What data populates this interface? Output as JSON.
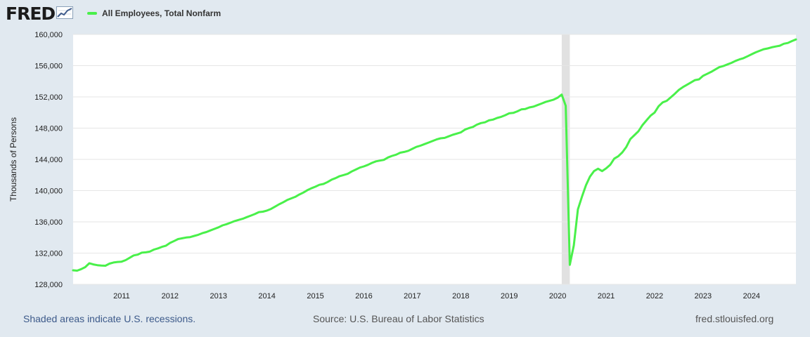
{
  "header": {
    "logo_text": "FRED",
    "series_label": "All Employees, Total Nonfarm"
  },
  "colors": {
    "line": "#49f04a",
    "recession": "#e1e1e1",
    "background": "#e1e9f0",
    "plot_bg": "#ffffff"
  },
  "footer": {
    "recession_note": "Shaded areas indicate U.S. recessions.",
    "source": "Source: U.S. Bureau of Labor Statistics",
    "site": "fred.stlouisfed.org"
  },
  "chart_data": {
    "type": "line",
    "title": "",
    "xlabel": "",
    "ylabel": "Thousands of Persons",
    "ylim": [
      128000,
      160000
    ],
    "xlim": [
      "2010-01",
      "2024-12"
    ],
    "yticks": [
      128000,
      132000,
      136000,
      140000,
      144000,
      148000,
      152000,
      156000,
      160000
    ],
    "ytick_labels": [
      "128,000",
      "132,000",
      "136,000",
      "140,000",
      "144,000",
      "148,000",
      "152,000",
      "156,000",
      "160,000"
    ],
    "xtick_labels": [
      "2011",
      "2012",
      "2013",
      "2014",
      "2015",
      "2016",
      "2017",
      "2018",
      "2019",
      "2020",
      "2021",
      "2022",
      "2023",
      "2024"
    ],
    "grid": true,
    "recessions": [
      {
        "start": "2020-02",
        "end": "2020-04"
      }
    ],
    "series": [
      {
        "name": "All Employees, Total Nonfarm",
        "x": [
          "2010-01",
          "2010-02",
          "2010-03",
          "2010-04",
          "2010-05",
          "2010-06",
          "2010-07",
          "2010-08",
          "2010-09",
          "2010-10",
          "2010-11",
          "2010-12",
          "2011-01",
          "2011-02",
          "2011-03",
          "2011-04",
          "2011-05",
          "2011-06",
          "2011-07",
          "2011-08",
          "2011-09",
          "2011-10",
          "2011-11",
          "2011-12",
          "2012-01",
          "2012-02",
          "2012-03",
          "2012-04",
          "2012-05",
          "2012-06",
          "2012-07",
          "2012-08",
          "2012-09",
          "2012-10",
          "2012-11",
          "2012-12",
          "2013-01",
          "2013-02",
          "2013-03",
          "2013-04",
          "2013-05",
          "2013-06",
          "2013-07",
          "2013-08",
          "2013-09",
          "2013-10",
          "2013-11",
          "2013-12",
          "2014-01",
          "2014-02",
          "2014-03",
          "2014-04",
          "2014-05",
          "2014-06",
          "2014-07",
          "2014-08",
          "2014-09",
          "2014-10",
          "2014-11",
          "2014-12",
          "2015-01",
          "2015-02",
          "2015-03",
          "2015-04",
          "2015-05",
          "2015-06",
          "2015-07",
          "2015-08",
          "2015-09",
          "2015-10",
          "2015-11",
          "2015-12",
          "2016-01",
          "2016-02",
          "2016-03",
          "2016-04",
          "2016-05",
          "2016-06",
          "2016-07",
          "2016-08",
          "2016-09",
          "2016-10",
          "2016-11",
          "2016-12",
          "2017-01",
          "2017-02",
          "2017-03",
          "2017-04",
          "2017-05",
          "2017-06",
          "2017-07",
          "2017-08",
          "2017-09",
          "2017-10",
          "2017-11",
          "2017-12",
          "2018-01",
          "2018-02",
          "2018-03",
          "2018-04",
          "2018-05",
          "2018-06",
          "2018-07",
          "2018-08",
          "2018-09",
          "2018-10",
          "2018-11",
          "2018-12",
          "2019-01",
          "2019-02",
          "2019-03",
          "2019-04",
          "2019-05",
          "2019-06",
          "2019-07",
          "2019-08",
          "2019-09",
          "2019-10",
          "2019-11",
          "2019-12",
          "2020-01",
          "2020-02",
          "2020-03",
          "2020-04",
          "2020-05",
          "2020-06",
          "2020-07",
          "2020-08",
          "2020-09",
          "2020-10",
          "2020-11",
          "2020-12",
          "2021-01",
          "2021-02",
          "2021-03",
          "2021-04",
          "2021-05",
          "2021-06",
          "2021-07",
          "2021-08",
          "2021-09",
          "2021-10",
          "2021-11",
          "2021-12",
          "2022-01",
          "2022-02",
          "2022-03",
          "2022-04",
          "2022-05",
          "2022-06",
          "2022-07",
          "2022-08",
          "2022-09",
          "2022-10",
          "2022-11",
          "2022-12",
          "2023-01",
          "2023-02",
          "2023-03",
          "2023-04",
          "2023-05",
          "2023-06",
          "2023-07",
          "2023-08",
          "2023-09",
          "2023-10",
          "2023-11",
          "2023-12",
          "2024-01",
          "2024-02",
          "2024-03",
          "2024-04",
          "2024-05",
          "2024-06",
          "2024-07",
          "2024-08",
          "2024-09",
          "2024-10",
          "2024-11",
          "2024-12"
        ],
        "values": [
          129800,
          129750,
          129950,
          130200,
          130700,
          130550,
          130450,
          130400,
          130380,
          130650,
          130800,
          130870,
          130900,
          131100,
          131400,
          131700,
          131800,
          132050,
          132100,
          132200,
          132450,
          132600,
          132800,
          132950,
          133300,
          133550,
          133800,
          133900,
          134000,
          134050,
          134200,
          134350,
          134550,
          134700,
          134900,
          135100,
          135300,
          135550,
          135700,
          135900,
          136100,
          136250,
          136400,
          136600,
          136800,
          137000,
          137250,
          137300,
          137450,
          137650,
          137950,
          138250,
          138500,
          138800,
          139000,
          139200,
          139500,
          139750,
          140050,
          140300,
          140500,
          140750,
          140850,
          141100,
          141400,
          141600,
          141850,
          142000,
          142150,
          142450,
          142700,
          142950,
          143100,
          143300,
          143550,
          143750,
          143850,
          143950,
          144250,
          144450,
          144600,
          144850,
          144950,
          145100,
          145350,
          145600,
          145750,
          145950,
          146150,
          146350,
          146550,
          146700,
          146750,
          146950,
          147150,
          147300,
          147450,
          147800,
          148000,
          148150,
          148450,
          148650,
          148750,
          149000,
          149100,
          149300,
          149450,
          149650,
          149900,
          149950,
          150150,
          150400,
          150450,
          150650,
          150750,
          150950,
          151150,
          151350,
          151500,
          151650,
          151900,
          152300,
          150850,
          130500,
          133000,
          137600,
          139200,
          140700,
          141800,
          142500,
          142800,
          142500,
          142850,
          143300,
          144100,
          144400,
          144900,
          145600,
          146600,
          147100,
          147600,
          148400,
          149000,
          149600,
          150000,
          150800,
          151300,
          151500,
          151950,
          152400,
          152900,
          153250,
          153550,
          153850,
          154150,
          154250,
          154700,
          154950,
          155200,
          155500,
          155800,
          155950,
          156150,
          156350,
          156600,
          156800,
          156950,
          157200,
          157450,
          157700,
          157900,
          158100,
          158200,
          158350,
          158450,
          158550,
          158800,
          158900,
          159150,
          159350
        ]
      }
    ]
  }
}
